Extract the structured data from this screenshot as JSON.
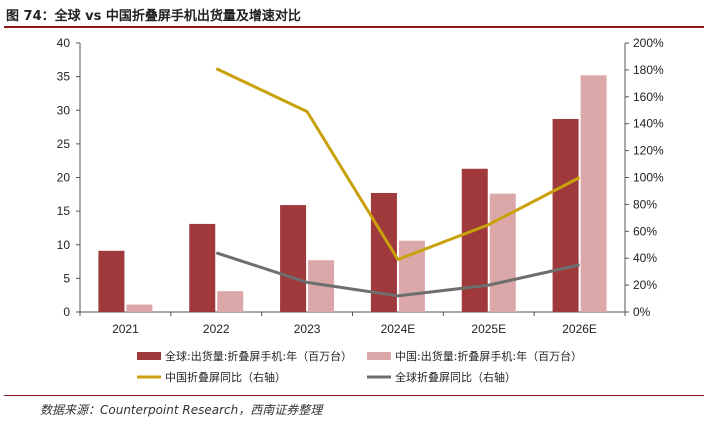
{
  "figure": {
    "title": "图 74：全球 vs 中国折叠屏手机出货量及增速对比",
    "source": "数据来源：Counterpoint Research，西南证券整理"
  },
  "colors": {
    "global_bar": "#a0393b",
    "china_bar": "#dca7a9",
    "china_yoy_line": "#c9a10d",
    "global_yoy_line": "#6e6e6e",
    "rule": "#8b1a1a"
  },
  "chart_data": {
    "type": "bar",
    "title": "图 74：全球 vs 中国折叠屏手机出货量及增速对比",
    "categories": [
      "2021",
      "2022",
      "2023",
      "2024E",
      "2025E",
      "2026E"
    ],
    "series": [
      {
        "name": "全球:出货量:折叠屏手机:年（百万台）",
        "type": "bar",
        "axis": "left",
        "values": [
          9.1,
          13.1,
          15.9,
          17.7,
          21.3,
          28.7
        ]
      },
      {
        "name": "中国:出货量:折叠屏手机:年（百万台）",
        "type": "bar",
        "axis": "left",
        "values": [
          1.1,
          3.1,
          7.7,
          10.6,
          17.6,
          35.2
        ]
      },
      {
        "name": "中国折叠屏同比（右轴）",
        "type": "line",
        "axis": "right",
        "values": [
          null,
          1.81,
          1.49,
          0.39,
          0.65,
          1.0
        ]
      },
      {
        "name": "全球折叠屏同比（右轴）",
        "type": "line",
        "axis": "right",
        "values": [
          null,
          0.44,
          0.22,
          0.12,
          0.2,
          0.35
        ]
      }
    ],
    "y_left": {
      "min": 0,
      "max": 40,
      "ticks": [
        "0",
        "5",
        "10",
        "15",
        "20",
        "25",
        "30",
        "35",
        "40"
      ]
    },
    "y_right": {
      "min": 0,
      "max": 2.0,
      "ticks": [
        "0%",
        "20%",
        "40%",
        "60%",
        "80%",
        "100%",
        "120%",
        "140%",
        "160%",
        "180%",
        "200%"
      ]
    },
    "grid": false,
    "legend_position": "bottom"
  }
}
